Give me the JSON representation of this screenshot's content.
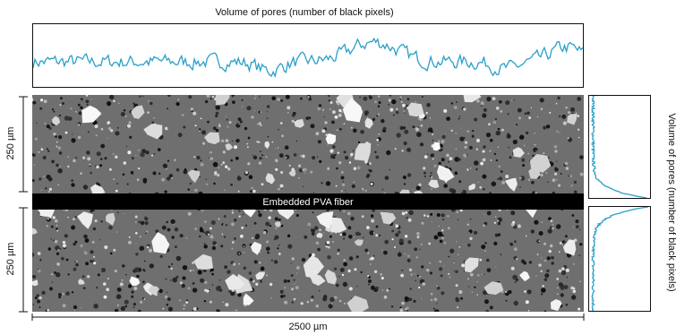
{
  "top_profile": {
    "title": "Volume of pores (number of black pixels)"
  },
  "side_profile": {
    "title": "Volume of pores (number of black pixels)"
  },
  "micrograph": {
    "fiber_label": "Embedded PVA fiber",
    "colors": {
      "matrix": "#6f6f6f",
      "fiber": "#000000",
      "particles": "#e6e6e6",
      "pores": "#1e1e1e"
    }
  },
  "dimensions": {
    "upper_height": "250 µm",
    "lower_height": "250 µm",
    "width": "2500 µm"
  },
  "accent_color": "#2a9fc9"
}
